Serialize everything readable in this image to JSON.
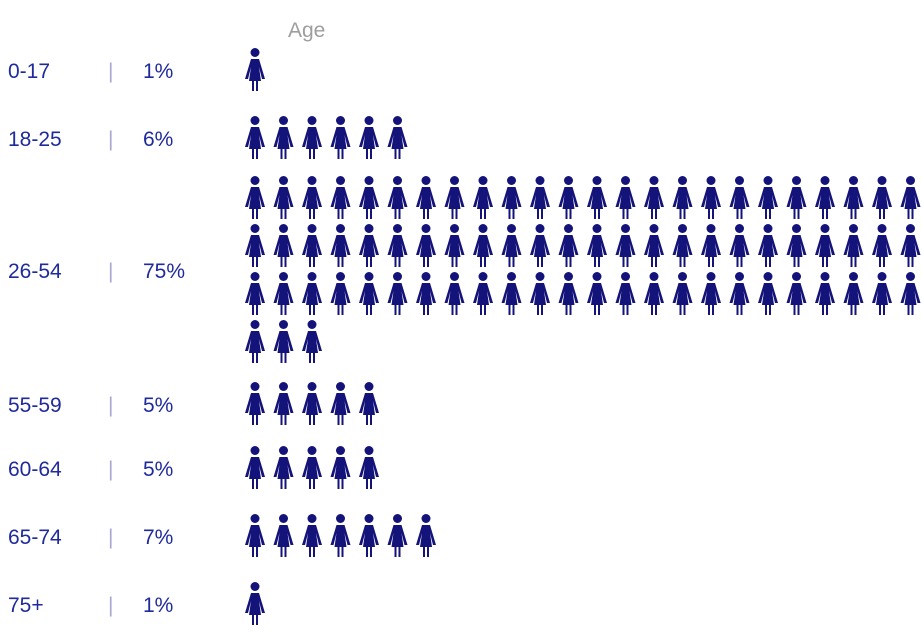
{
  "chart_data": {
    "type": "pictogram",
    "title": "Age",
    "icon": "person-icon",
    "icons_per_row": 24,
    "unit_per_icon": "1%",
    "separator": "|",
    "categories": [
      "0-17",
      "18-25",
      "26-54",
      "55-59",
      "60-64",
      "65-74",
      "75+"
    ],
    "values": [
      1,
      6,
      75,
      5,
      5,
      7,
      1
    ],
    "value_labels": [
      "1%",
      "6%",
      "75%",
      "5%",
      "5%",
      "7%",
      "1%"
    ]
  },
  "colors": {
    "icon": "#13137a",
    "label": "#1f2a9c",
    "separator": "#a8a8d0",
    "title": "#9e9e9e",
    "background": "#ffffff"
  }
}
